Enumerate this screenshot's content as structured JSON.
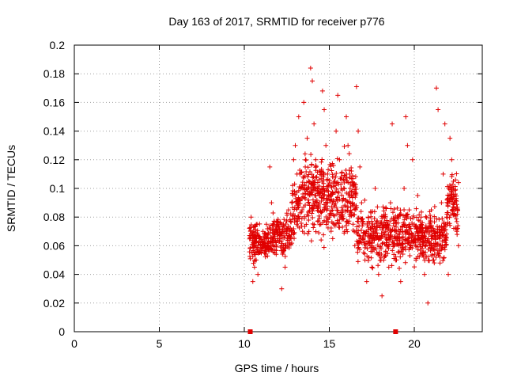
{
  "chart_data": {
    "type": "scatter",
    "title": "Day 163 of 2017, SRMTID for receiver p776",
    "xlabel": "GPS time / hours",
    "ylabel": "SRMTID / TECUs",
    "xlim": [
      0,
      24
    ],
    "ylim": [
      0,
      0.2
    ],
    "xticks": [
      0,
      5,
      10,
      15,
      20
    ],
    "yticks": [
      0,
      0.02,
      0.04,
      0.06,
      0.08,
      0.1,
      0.12,
      0.14,
      0.16,
      0.18,
      0.2
    ],
    "xtick_labels": [
      "0",
      "5",
      "10",
      "15",
      "20"
    ],
    "ytick_labels": [
      "0",
      "0.02",
      "0.04",
      "0.06",
      "0.08",
      "0.1",
      "0.12",
      "0.14",
      "0.16",
      "0.18",
      "0.2"
    ],
    "grid": true,
    "marker": "+",
    "color": "#e00000",
    "data_extent_hours": [
      10.3,
      22.6
    ],
    "zero_markers_hours": [
      10.35,
      18.9
    ],
    "series": [
      {
        "name": "SRMTID",
        "points": [
          [
            10.35,
            0.065
          ],
          [
            10.4,
            0.08
          ],
          [
            10.45,
            0.055
          ],
          [
            10.5,
            0.035
          ],
          [
            10.55,
            0.07
          ],
          [
            10.6,
            0.045
          ],
          [
            10.65,
            0.065
          ],
          [
            10.7,
            0.05
          ],
          [
            10.75,
            0.075
          ],
          [
            10.8,
            0.04
          ],
          [
            10.9,
            0.065
          ],
          [
            11.0,
            0.055
          ],
          [
            11.1,
            0.07
          ],
          [
            11.2,
            0.06
          ],
          [
            11.3,
            0.075
          ],
          [
            11.4,
            0.065
          ],
          [
            11.5,
            0.115
          ],
          [
            11.6,
            0.09
          ],
          [
            11.7,
            0.06
          ],
          [
            11.8,
            0.055
          ],
          [
            11.9,
            0.07
          ],
          [
            12.0,
            0.075
          ],
          [
            12.1,
            0.065
          ],
          [
            12.2,
            0.03
          ],
          [
            12.3,
            0.06
          ],
          [
            12.4,
            0.045
          ],
          [
            12.5,
            0.07
          ],
          [
            12.6,
            0.085
          ],
          [
            12.7,
            0.065
          ],
          [
            12.8,
            0.09
          ],
          [
            12.9,
            0.12
          ],
          [
            13.0,
            0.13
          ],
          [
            13.1,
            0.11
          ],
          [
            13.2,
            0.15
          ],
          [
            13.3,
            0.1
          ],
          [
            13.4,
            0.085
          ],
          [
            13.5,
            0.16
          ],
          [
            13.6,
            0.12
          ],
          [
            13.7,
            0.135
          ],
          [
            13.8,
            0.105
          ],
          [
            13.9,
            0.184
          ],
          [
            14.0,
            0.175
          ],
          [
            14.1,
            0.145
          ],
          [
            14.2,
            0.12
          ],
          [
            14.3,
            0.1
          ],
          [
            14.4,
            0.09
          ],
          [
            14.5,
            0.075
          ],
          [
            14.6,
            0.168
          ],
          [
            14.7,
            0.155
          ],
          [
            14.8,
            0.13
          ],
          [
            14.9,
            0.11
          ],
          [
            15.0,
            0.08
          ],
          [
            15.1,
            0.095
          ],
          [
            15.2,
            0.065
          ],
          [
            15.3,
            0.075
          ],
          [
            15.4,
            0.14
          ],
          [
            15.5,
            0.165
          ],
          [
            15.6,
            0.12
          ],
          [
            15.7,
            0.1
          ],
          [
            15.8,
            0.085
          ],
          [
            15.9,
            0.07
          ],
          [
            16.0,
            0.15
          ],
          [
            16.1,
            0.13
          ],
          [
            16.2,
            0.11
          ],
          [
            16.3,
            0.095
          ],
          [
            16.4,
            0.075
          ],
          [
            16.5,
            0.06
          ],
          [
            16.6,
            0.171
          ],
          [
            16.7,
            0.14
          ],
          [
            16.8,
            0.115
          ],
          [
            16.9,
            0.09
          ],
          [
            17.0,
            0.065
          ],
          [
            17.1,
            0.05
          ],
          [
            17.2,
            0.035
          ],
          [
            17.3,
            0.08
          ],
          [
            17.4,
            0.06
          ],
          [
            17.5,
            0.045
          ],
          [
            17.6,
            0.07
          ],
          [
            17.7,
            0.1
          ],
          [
            17.8,
            0.055
          ],
          [
            17.9,
            0.04
          ],
          [
            18.0,
            0.065
          ],
          [
            18.1,
            0.025
          ],
          [
            18.2,
            0.05
          ],
          [
            18.3,
            0.075
          ],
          [
            18.4,
            0.06
          ],
          [
            18.5,
            0.045
          ],
          [
            18.6,
            0.09
          ],
          [
            18.7,
            0.145
          ],
          [
            18.8,
            0.065
          ],
          [
            18.9,
            0.05
          ],
          [
            19.0,
            0.08
          ],
          [
            19.1,
            0.06
          ],
          [
            19.2,
            0.035
          ],
          [
            19.3,
            0.07
          ],
          [
            19.4,
            0.1
          ],
          [
            19.5,
            0.15
          ],
          [
            19.6,
            0.13
          ],
          [
            19.7,
            0.085
          ],
          [
            19.8,
            0.06
          ],
          [
            19.9,
            0.12
          ],
          [
            20.0,
            0.075
          ],
          [
            20.1,
            0.05
          ],
          [
            20.2,
            0.095
          ],
          [
            20.3,
            0.065
          ],
          [
            20.4,
            0.08
          ],
          [
            20.5,
            0.055
          ],
          [
            20.6,
            0.04
          ],
          [
            20.7,
            0.07
          ],
          [
            20.8,
            0.02
          ],
          [
            20.9,
            0.06
          ],
          [
            21.0,
            0.085
          ],
          [
            21.1,
            0.05
          ],
          [
            21.2,
            0.07
          ],
          [
            21.3,
            0.17
          ],
          [
            21.4,
            0.155
          ],
          [
            21.5,
            0.065
          ],
          [
            21.6,
            0.09
          ],
          [
            21.7,
            0.11
          ],
          [
            21.8,
            0.145
          ],
          [
            21.9,
            0.08
          ],
          [
            22.0,
            0.04
          ],
          [
            22.1,
            0.135
          ],
          [
            22.2,
            0.12
          ],
          [
            22.3,
            0.105
          ],
          [
            22.4,
            0.09
          ],
          [
            22.5,
            0.07
          ],
          [
            22.55,
            0.085
          ],
          [
            22.6,
            0.06
          ]
        ]
      }
    ]
  }
}
